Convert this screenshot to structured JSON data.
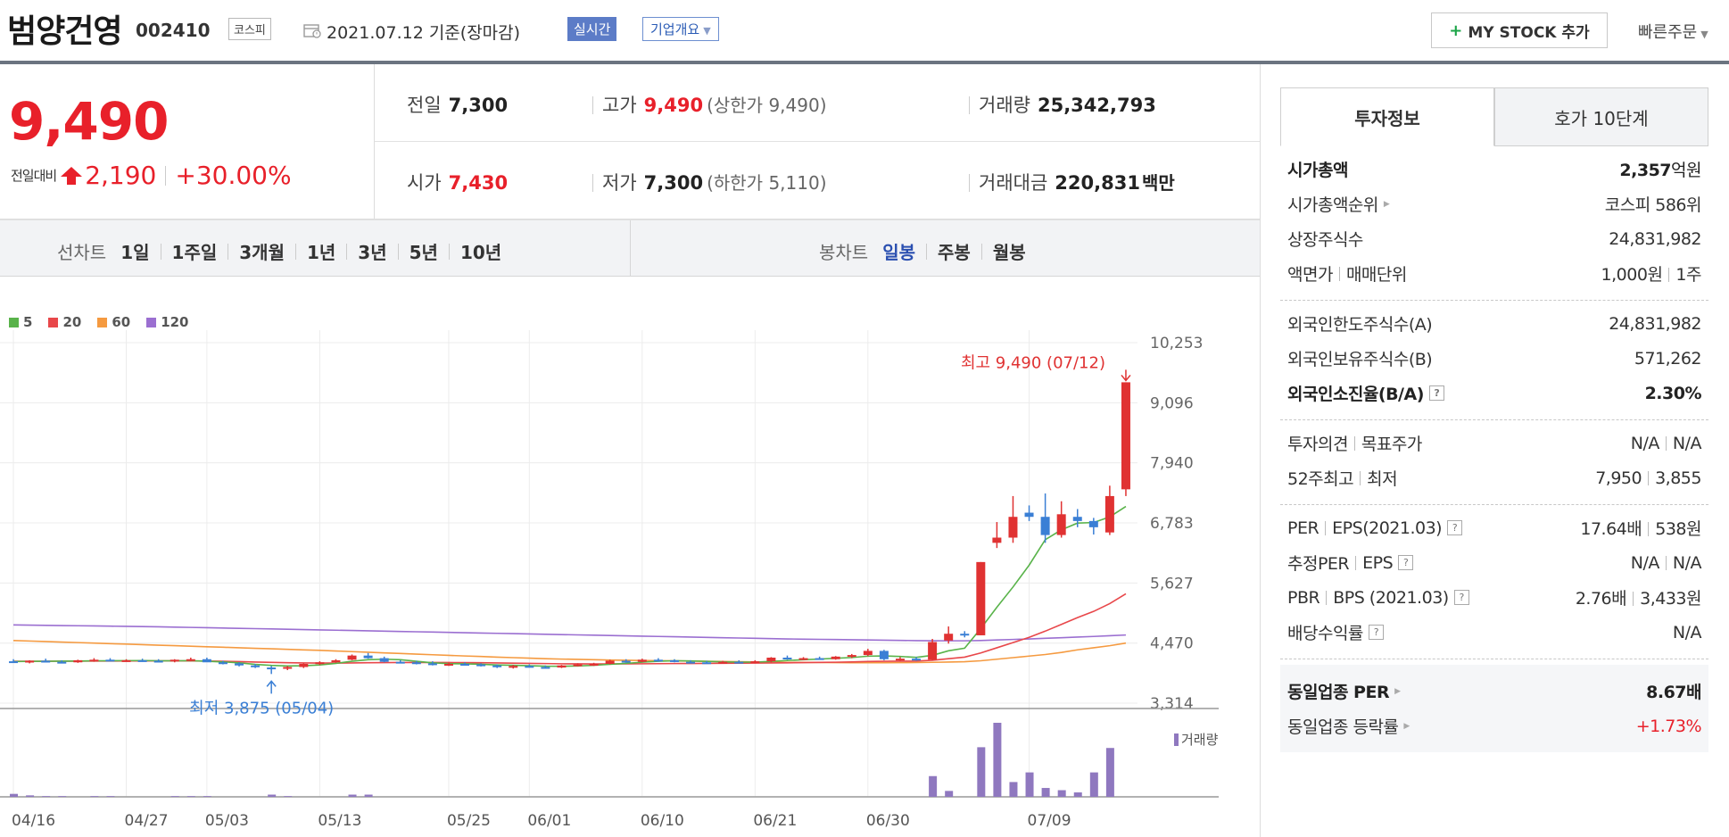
{
  "header": {
    "stock_name": "범양건영",
    "stock_code": "002410",
    "market": "코스피",
    "date_text": "2021.07.12  기준(장마감)",
    "realtime": "실시간",
    "company_overview": "기업개요",
    "mystock_button": "MY STOCK 추가",
    "quick_order": "빠른주문"
  },
  "price": {
    "current": "9,490",
    "change_label": "전일대비",
    "change_amount": "2,190",
    "change_rate": "+30.00%",
    "color_up": "#e8202a"
  },
  "stats": {
    "prev_close_label": "전일",
    "prev_close": "7,300",
    "high_label": "고가",
    "high": "9,490",
    "upper_limit": "(상한가 9,490)",
    "volume_label": "거래량",
    "volume": "25,342,793",
    "open_label": "시가",
    "open": "7,430",
    "low_label": "저가",
    "low": "7,300",
    "lower_limit": "(하한가 5,110)",
    "amount_label": "거래대금",
    "amount": "220,831",
    "amount_unit": "백만"
  },
  "toolbar": {
    "line_chart_label": "선차트",
    "line_periods": [
      "1일",
      "1주일",
      "3개월",
      "1년",
      "3년",
      "5년",
      "10년"
    ],
    "candle_chart_label": "봉차트",
    "candle_periods": [
      "일봉",
      "주봉",
      "월봉"
    ],
    "active_candle_period": "일봉"
  },
  "chart_data": {
    "type": "candlestick",
    "legend": [
      {
        "label": "5",
        "color": "#59b34a"
      },
      {
        "label": "20",
        "color": "#e8474a"
      },
      {
        "label": "60",
        "color": "#f59a40"
      },
      {
        "label": "120",
        "color": "#9b6fd1"
      }
    ],
    "y_ticks": [
      "10,253",
      "9,096",
      "7,940",
      "6,783",
      "5,627",
      "4,470",
      "3,314"
    ],
    "ylim": [
      3314,
      10253
    ],
    "x_ticks": [
      "04/16",
      "04/27",
      "05/03",
      "05/13",
      "05/25",
      "06/01",
      "06/10",
      "06/21",
      "06/30",
      "07/09"
    ],
    "max_annotation": "최고 9,490 (07/12)",
    "min_annotation": "최저 3,875 (05/04)",
    "volume_label": "거래량",
    "up_color": "#e03232",
    "down_color": "#3a7fd5",
    "volume_color": "#8f78bf",
    "candles": [
      {
        "o": 4120,
        "h": 4160,
        "l": 4090,
        "c": 4110
      },
      {
        "o": 4100,
        "h": 4140,
        "l": 4080,
        "c": 4130
      },
      {
        "o": 4130,
        "h": 4170,
        "l": 4100,
        "c": 4120
      },
      {
        "o": 4110,
        "h": 4140,
        "l": 4080,
        "c": 4100
      },
      {
        "o": 4100,
        "h": 4150,
        "l": 4090,
        "c": 4140
      },
      {
        "o": 4140,
        "h": 4180,
        "l": 4110,
        "c": 4150
      },
      {
        "o": 4150,
        "h": 4180,
        "l": 4120,
        "c": 4130
      },
      {
        "o": 4130,
        "h": 4160,
        "l": 4110,
        "c": 4140
      },
      {
        "o": 4140,
        "h": 4170,
        "l": 4110,
        "c": 4130
      },
      {
        "o": 4130,
        "h": 4160,
        "l": 4100,
        "c": 4120
      },
      {
        "o": 4120,
        "h": 4160,
        "l": 4100,
        "c": 4150
      },
      {
        "o": 4150,
        "h": 4190,
        "l": 4120,
        "c": 4160
      },
      {
        "o": 4160,
        "h": 4190,
        "l": 4110,
        "c": 4100
      },
      {
        "o": 4100,
        "h": 4130,
        "l": 4060,
        "c": 4080
      },
      {
        "o": 4080,
        "h": 4100,
        "l": 4020,
        "c": 4040
      },
      {
        "o": 4040,
        "h": 4070,
        "l": 3990,
        "c": 4010
      },
      {
        "o": 4000,
        "h": 4030,
        "l": 3875,
        "c": 3990
      },
      {
        "o": 3990,
        "h": 4030,
        "l": 3950,
        "c": 4010
      },
      {
        "o": 4010,
        "h": 4080,
        "l": 3990,
        "c": 4070
      },
      {
        "o": 4070,
        "h": 4120,
        "l": 4050,
        "c": 4100
      },
      {
        "o": 4100,
        "h": 4160,
        "l": 4090,
        "c": 4140
      },
      {
        "o": 4150,
        "h": 4250,
        "l": 4140,
        "c": 4230
      },
      {
        "o": 4230,
        "h": 4280,
        "l": 4170,
        "c": 4180
      },
      {
        "o": 4180,
        "h": 4210,
        "l": 4100,
        "c": 4110
      },
      {
        "o": 4110,
        "h": 4140,
        "l": 4080,
        "c": 4100
      },
      {
        "o": 4100,
        "h": 4130,
        "l": 4060,
        "c": 4080
      },
      {
        "o": 4080,
        "h": 4120,
        "l": 4040,
        "c": 4060
      },
      {
        "o": 4060,
        "h": 4090,
        "l": 4030,
        "c": 4070
      },
      {
        "o": 4070,
        "h": 4100,
        "l": 4040,
        "c": 4060
      },
      {
        "o": 4060,
        "h": 4080,
        "l": 4020,
        "c": 4040
      },
      {
        "o": 4040,
        "h": 4060,
        "l": 3990,
        "c": 4010
      },
      {
        "o": 4010,
        "h": 4050,
        "l": 3980,
        "c": 4030
      },
      {
        "o": 4030,
        "h": 4060,
        "l": 4000,
        "c": 4010
      },
      {
        "o": 4010,
        "h": 4040,
        "l": 3980,
        "c": 4000
      },
      {
        "o": 4000,
        "h": 4050,
        "l": 3990,
        "c": 4040
      },
      {
        "o": 4040,
        "h": 4080,
        "l": 4020,
        "c": 4060
      },
      {
        "o": 4060,
        "h": 4090,
        "l": 4030,
        "c": 4070
      },
      {
        "o": 4070,
        "h": 4150,
        "l": 4060,
        "c": 4130
      },
      {
        "o": 4130,
        "h": 4160,
        "l": 4090,
        "c": 4110
      },
      {
        "o": 4110,
        "h": 4170,
        "l": 4100,
        "c": 4150
      },
      {
        "o": 4150,
        "h": 4180,
        "l": 4110,
        "c": 4140
      },
      {
        "o": 4140,
        "h": 4160,
        "l": 4100,
        "c": 4110
      },
      {
        "o": 4110,
        "h": 4140,
        "l": 4080,
        "c": 4100
      },
      {
        "o": 4100,
        "h": 4130,
        "l": 4070,
        "c": 4090
      },
      {
        "o": 4090,
        "h": 4130,
        "l": 4080,
        "c": 4110
      },
      {
        "o": 4110,
        "h": 4140,
        "l": 4090,
        "c": 4100
      },
      {
        "o": 4100,
        "h": 4140,
        "l": 4080,
        "c": 4120
      },
      {
        "o": 4120,
        "h": 4200,
        "l": 4100,
        "c": 4190
      },
      {
        "o": 4190,
        "h": 4230,
        "l": 4150,
        "c": 4170
      },
      {
        "o": 4170,
        "h": 4200,
        "l": 4140,
        "c": 4180
      },
      {
        "o": 4180,
        "h": 4210,
        "l": 4150,
        "c": 4160
      },
      {
        "o": 4160,
        "h": 4220,
        "l": 4150,
        "c": 4210
      },
      {
        "o": 4210,
        "h": 4260,
        "l": 4180,
        "c": 4240
      },
      {
        "o": 4240,
        "h": 4360,
        "l": 4220,
        "c": 4320
      },
      {
        "o": 4320,
        "h": 4340,
        "l": 4140,
        "c": 4160
      },
      {
        "o": 4160,
        "h": 4200,
        "l": 4130,
        "c": 4170
      },
      {
        "o": 4170,
        "h": 4200,
        "l": 4130,
        "c": 4150
      },
      {
        "o": 4150,
        "h": 4550,
        "l": 4140,
        "c": 4490
      },
      {
        "o": 4520,
        "h": 4790,
        "l": 4460,
        "c": 4650
      },
      {
        "o": 4650,
        "h": 4700,
        "l": 4580,
        "c": 4620
      },
      {
        "o": 4620,
        "h": 6030,
        "l": 4620,
        "c": 6030
      },
      {
        "o": 6400,
        "h": 6800,
        "l": 6300,
        "c": 6500
      },
      {
        "o": 6500,
        "h": 7300,
        "l": 6400,
        "c": 6900
      },
      {
        "o": 6980,
        "h": 7120,
        "l": 6820,
        "c": 6900
      },
      {
        "o": 6900,
        "h": 7350,
        "l": 6400,
        "c": 6550
      },
      {
        "o": 6550,
        "h": 7200,
        "l": 6500,
        "c": 6950
      },
      {
        "o": 6900,
        "h": 7050,
        "l": 6700,
        "c": 6820
      },
      {
        "o": 6820,
        "h": 6880,
        "l": 6560,
        "c": 6700
      },
      {
        "o": 6600,
        "h": 7500,
        "l": 6550,
        "c": 7300
      },
      {
        "o": 7430,
        "h": 9490,
        "l": 7300,
        "c": 9490
      }
    ],
    "ma5": [
      4115,
      4118,
      4120,
      4122,
      4125,
      4128,
      4130,
      4132,
      4134,
      4130,
      4128,
      4132,
      4120,
      4108,
      4090,
      4060,
      4040,
      4030,
      4035,
      4050,
      4080,
      4120,
      4150,
      4160,
      4150,
      4120,
      4090,
      4075,
      4070,
      4063,
      4050,
      4043,
      4035,
      4025,
      4024,
      4030,
      4042,
      4062,
      4080,
      4102,
      4120,
      4130,
      4127,
      4118,
      4110,
      4104,
      4104,
      4118,
      4134,
      4150,
      4162,
      4178,
      4192,
      4218,
      4224,
      4212,
      4196,
      4234,
      4322,
      4372,
      4750,
      5160,
      5550,
      5970,
      6460,
      6650,
      6780,
      6790,
      6900,
      7100
    ],
    "ma20": [
      4120,
      4120,
      4121,
      4122,
      4123,
      4124,
      4125,
      4126,
      4127,
      4128,
      4128,
      4127,
      4124,
      4120,
      4114,
      4106,
      4098,
      4092,
      4088,
      4086,
      4086,
      4088,
      4092,
      4094,
      4096,
      4097,
      4097,
      4096,
      4094,
      4092,
      4088,
      4084,
      4080,
      4076,
      4072,
      4070,
      4068,
      4068,
      4070,
      4072,
      4074,
      4076,
      4078,
      4080,
      4082,
      4084,
      4086,
      4088,
      4090,
      4094,
      4098,
      4102,
      4108,
      4116,
      4120,
      4122,
      4124,
      4140,
      4170,
      4200,
      4280,
      4380,
      4480,
      4580,
      4700,
      4830,
      4960,
      5080,
      5230,
      5420
    ],
    "ma60": [
      4520,
      4510,
      4500,
      4490,
      4480,
      4470,
      4460,
      4450,
      4440,
      4430,
      4420,
      4410,
      4400,
      4390,
      4380,
      4370,
      4360,
      4350,
      4340,
      4330,
      4318,
      4306,
      4294,
      4282,
      4270,
      4258,
      4246,
      4234,
      4222,
      4212,
      4200,
      4190,
      4180,
      4170,
      4162,
      4156,
      4150,
      4144,
      4140,
      4136,
      4132,
      4128,
      4124,
      4120,
      4116,
      4112,
      4108,
      4104,
      4100,
      4098,
      4096,
      4094,
      4092,
      4092,
      4092,
      4094,
      4096,
      4100,
      4106,
      4112,
      4130,
      4160,
      4190,
      4220,
      4250,
      4290,
      4340,
      4380,
      4420,
      4470
    ],
    "ma120": [
      4820,
      4816,
      4812,
      4808,
      4804,
      4800,
      4796,
      4792,
      4788,
      4784,
      4778,
      4772,
      4766,
      4760,
      4754,
      4748,
      4742,
      4736,
      4730,
      4724,
      4718,
      4712,
      4706,
      4700,
      4694,
      4688,
      4682,
      4676,
      4670,
      4664,
      4658,
      4652,
      4646,
      4640,
      4634,
      4628,
      4622,
      4616,
      4610,
      4604,
      4598,
      4592,
      4586,
      4580,
      4574,
      4568,
      4562,
      4556,
      4550,
      4546,
      4542,
      4538,
      4534,
      4530,
      4526,
      4522,
      4518,
      4516,
      4514,
      4514,
      4520,
      4530,
      4540,
      4550,
      4562,
      4574,
      4586,
      4598,
      4612,
      4626
    ],
    "volume": [
      0.04,
      0.02,
      0.01,
      0.01,
      0.0,
      0.01,
      0.01,
      0.0,
      0.0,
      0.0,
      0.01,
      0.01,
      0.01,
      0.0,
      0.0,
      0.0,
      0.03,
      0.01,
      0.0,
      0.0,
      0.0,
      0.03,
      0.03,
      0.0,
      0.0,
      0.0,
      0.0,
      0.0,
      0.0,
      0.0,
      0.0,
      0.0,
      0.0,
      0.0,
      0.0,
      0.0,
      0.0,
      0.0,
      0.0,
      0.0,
      0.0,
      0.0,
      0.0,
      0.0,
      0.0,
      0.0,
      0.0,
      0.0,
      0.0,
      0.0,
      0.0,
      0.0,
      0.0,
      0.0,
      0.0,
      0.0,
      0.0,
      0.28,
      0.08,
      0.0,
      0.67,
      1.0,
      0.2,
      0.33,
      0.12,
      0.09,
      0.06,
      0.33,
      0.66,
      0.0
    ]
  },
  "right_panel": {
    "tabs": [
      "투자정보",
      "호가 10단계"
    ],
    "section1": [
      {
        "k": "시가총액",
        "v": "2,357",
        "unit": "억원"
      },
      {
        "k": "시가총액순위",
        "v": "코스피 586위"
      },
      {
        "k": "상장주식수",
        "v": "24,831,982"
      },
      {
        "k1": "액면가",
        "k2": "매매단위",
        "v1": "1,000원",
        "v2": "1주"
      }
    ],
    "section2": [
      {
        "k": "외국인한도주식수(A)",
        "v": "24,831,982"
      },
      {
        "k": "외국인보유주식수(B)",
        "v": "571,262"
      },
      {
        "k": "외국인소진율(B/A)",
        "v": "2.30%"
      }
    ],
    "section3": [
      {
        "k1": "투자의견",
        "k2": "목표주가",
        "v1": "N/A",
        "v2": "N/A"
      },
      {
        "k1": "52주최고",
        "k2": "최저",
        "v1": "7,950",
        "v2": "3,855"
      }
    ],
    "section4": [
      {
        "k1": "PER",
        "k2": "EPS(2021.03)",
        "v1": "17.64배",
        "v2": "538원"
      },
      {
        "k1": "추정PER",
        "k2": "EPS",
        "v1": "N/A",
        "v2": "N/A"
      },
      {
        "k1": "PBR",
        "k2": "BPS (2021.03)",
        "v1": "2.76배",
        "v2": "3,433원"
      },
      {
        "k": "배당수익률",
        "v": "N/A"
      }
    ],
    "section5": [
      {
        "k": "동일업종 PER",
        "v": "8.67배"
      },
      {
        "k": "동일업종 등락률",
        "v": "+1.73%"
      }
    ],
    "help_glyph": "?"
  }
}
